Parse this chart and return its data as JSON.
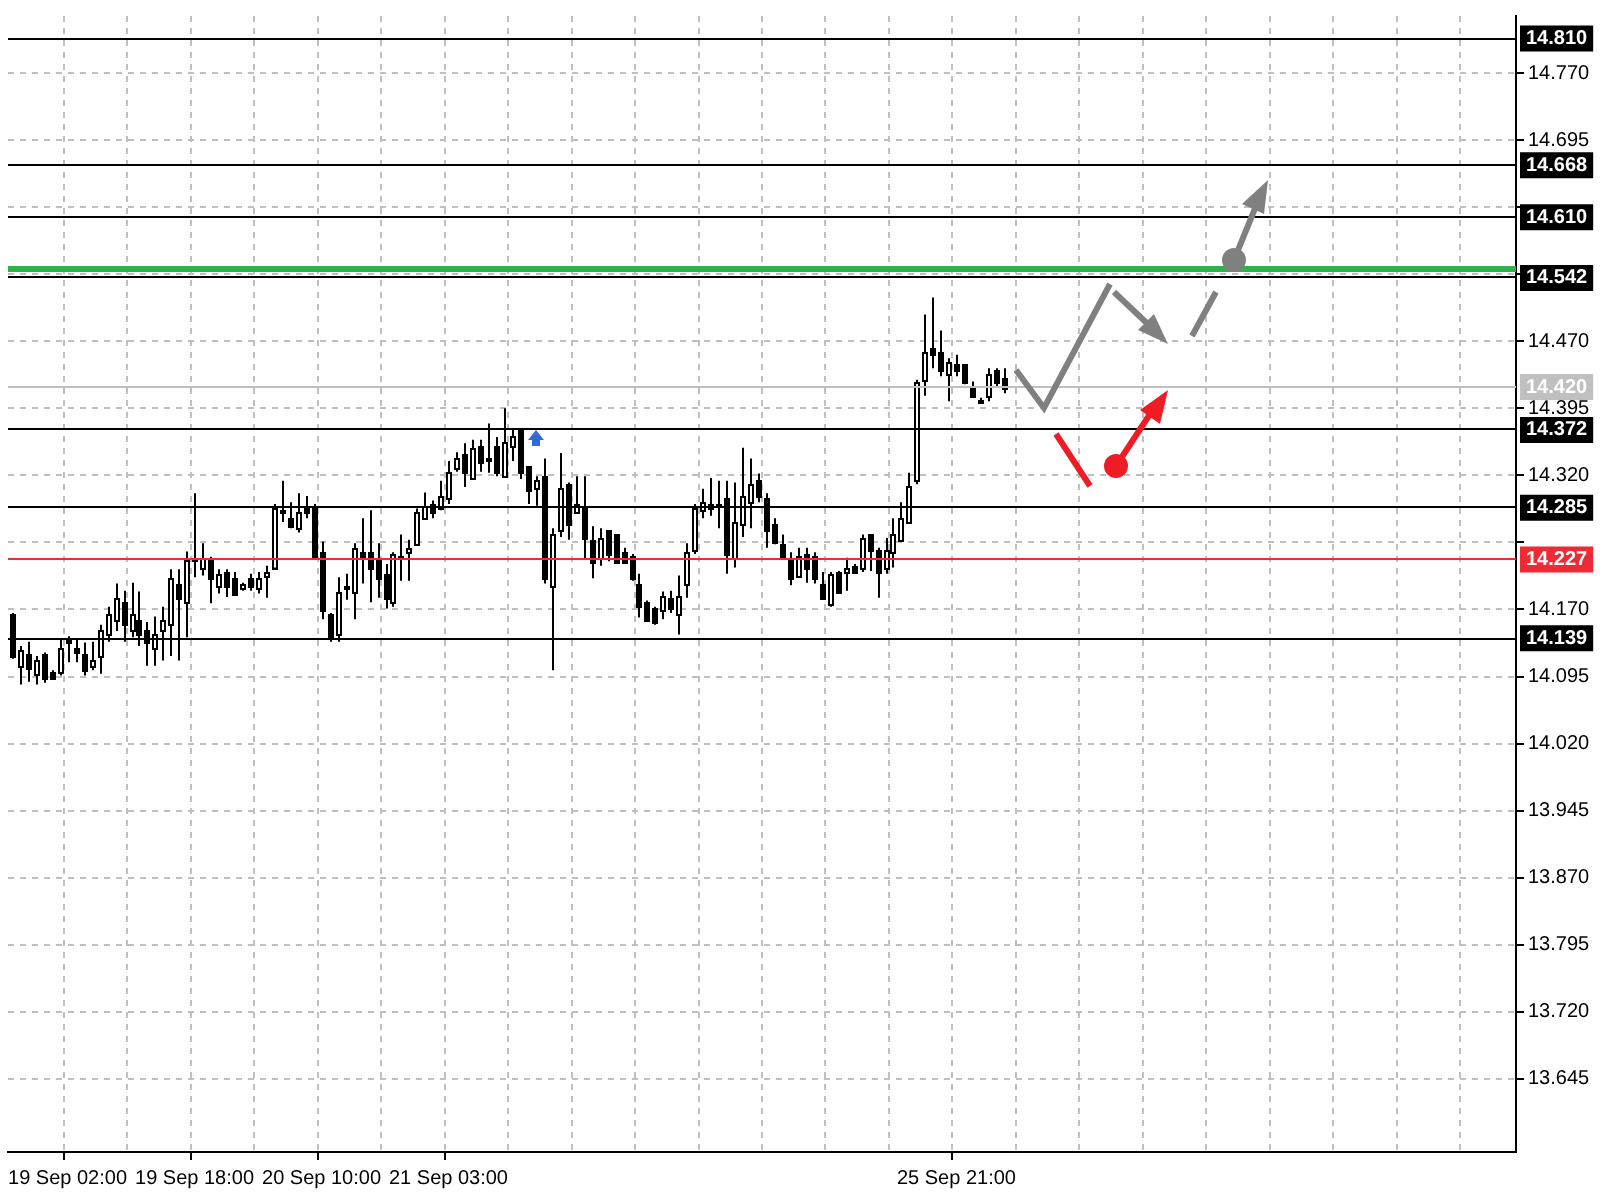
{
  "chart_data": {
    "type": "candlestick",
    "color": "#000000",
    "categories": [
      null,
      null,
      null,
      null,
      null,
      null,
      null,
      "19 Sep 02:00",
      null,
      null,
      null,
      null,
      null,
      null,
      null,
      null,
      null,
      null,
      null,
      null,
      null,
      null,
      null,
      "19 Sep 18:00",
      null,
      null,
      null,
      null,
      null,
      null,
      null,
      null,
      null,
      null,
      null,
      null,
      null,
      null,
      null,
      "20 Sep 10:00",
      null,
      null,
      null,
      null,
      null,
      null,
      null,
      null,
      null,
      null,
      null,
      null,
      null,
      null,
      null,
      "21 Sep 03:00",
      null,
      null,
      null,
      null,
      null,
      null,
      null,
      null,
      null,
      null,
      null,
      null,
      null,
      null,
      null,
      null,
      null,
      null,
      null,
      null,
      null,
      null,
      null,
      null,
      null,
      null,
      null,
      null,
      null,
      null,
      null,
      null,
      null,
      null,
      null,
      null,
      null,
      null,
      null,
      null,
      null,
      null,
      null,
      null,
      null,
      null,
      null,
      null,
      null,
      null,
      null,
      null,
      null,
      null,
      null,
      null,
      null,
      null,
      null,
      null,
      null,
      null,
      null,
      "25 Sep 21:00",
      null,
      null,
      null,
      null,
      null,
      null,
      null,
      null,
      null,
      null,
      null,
      null,
      null,
      null,
      null,
      null,
      null,
      null,
      null,
      null,
      null,
      null,
      null,
      null,
      null,
      null,
      null,
      null,
      null,
      null,
      null,
      null,
      null,
      null,
      null,
      null,
      null,
      null,
      null,
      null,
      null,
      null,
      null,
      null,
      null,
      null,
      null,
      null,
      null,
      null,
      null,
      null,
      null,
      null,
      null,
      null,
      null,
      null,
      null,
      null,
      null,
      null,
      null,
      null,
      null,
      null,
      null,
      null,
      null,
      null
    ],
    "ohlc": [
      [
        14.164,
        14.166,
        14.115,
        14.118
      ],
      [
        14.107,
        14.129,
        14.086,
        14.124
      ],
      [
        14.12,
        14.134,
        14.089,
        14.104
      ],
      [
        14.098,
        14.118,
        14.086,
        14.113
      ],
      [
        14.12,
        14.122,
        14.088,
        14.093
      ],
      [
        14.1,
        14.102,
        14.091,
        14.093
      ],
      [
        14.099,
        14.138,
        14.096,
        14.128
      ],
      [
        14.134,
        14.14,
        14.111,
        14.136
      ],
      [
        14.128,
        14.137,
        14.111,
        14.122
      ],
      [
        14.12,
        14.133,
        14.096,
        14.102
      ],
      [
        14.107,
        14.134,
        14.102,
        14.113
      ],
      [
        14.118,
        14.153,
        14.098,
        14.148
      ],
      [
        14.142,
        14.173,
        14.134,
        14.164
      ],
      [
        14.158,
        14.199,
        14.146,
        14.183
      ],
      [
        14.178,
        14.191,
        14.134,
        14.153
      ],
      [
        14.146,
        14.2,
        14.139,
        14.164
      ],
      [
        14.159,
        14.19,
        14.129,
        14.142
      ],
      [
        14.148,
        14.156,
        14.107,
        14.134
      ],
      [
        14.127,
        14.162,
        14.107,
        14.143
      ],
      [
        14.148,
        14.173,
        14.113,
        14.159
      ],
      [
        14.153,
        14.215,
        14.118,
        14.205
      ],
      [
        14.199,
        14.215,
        14.113,
        14.183
      ],
      [
        14.178,
        14.235,
        14.139,
        14.226
      ],
      [
        14.226,
        14.3,
        14.206,
        14.227
      ],
      [
        14.217,
        14.244,
        14.208,
        14.228
      ],
      [
        14.227,
        14.229,
        14.177,
        14.205
      ],
      [
        14.197,
        14.215,
        14.188,
        14.209
      ],
      [
        14.213,
        14.215,
        14.184,
        14.197
      ],
      [
        14.206,
        14.212,
        14.186,
        14.188
      ],
      [
        14.194,
        14.2,
        14.191,
        14.199
      ],
      [
        14.205,
        14.21,
        14.191,
        14.197
      ],
      [
        14.193,
        14.212,
        14.188,
        14.205
      ],
      [
        14.208,
        14.219,
        14.183,
        14.213
      ],
      [
        14.217,
        14.288,
        14.217,
        14.284
      ],
      [
        14.28,
        14.314,
        14.268,
        14.281
      ],
      [
        14.273,
        14.29,
        14.261,
        14.263
      ],
      [
        14.261,
        14.3,
        14.256,
        14.279
      ],
      [
        14.285,
        14.297,
        14.272,
        14.278
      ],
      [
        14.286,
        14.288,
        14.227,
        14.227
      ],
      [
        14.234,
        14.246,
        14.159,
        14.17
      ],
      [
        14.164,
        14.166,
        14.134,
        14.139
      ],
      [
        14.142,
        14.206,
        14.134,
        14.19
      ],
      [
        14.194,
        14.21,
        14.181,
        14.196
      ],
      [
        14.19,
        14.244,
        14.159,
        14.239
      ],
      [
        14.234,
        14.272,
        14.199,
        14.227
      ],
      [
        14.234,
        14.281,
        14.178,
        14.217
      ],
      [
        14.227,
        14.244,
        14.183,
        14.205
      ],
      [
        14.21,
        14.221,
        14.171,
        14.183
      ],
      [
        14.178,
        14.234,
        14.173,
        14.232
      ],
      [
        14.227,
        14.254,
        14.202,
        14.229
      ],
      [
        14.234,
        14.248,
        14.202,
        14.239
      ],
      [
        14.244,
        14.283,
        14.241,
        14.279
      ],
      [
        14.273,
        14.301,
        14.272,
        14.285
      ],
      [
        14.288,
        14.292,
        14.272,
        14.279
      ],
      [
        14.283,
        14.314,
        14.281,
        14.297
      ],
      [
        14.295,
        14.336,
        14.288,
        14.323
      ],
      [
        14.329,
        14.346,
        14.324,
        14.339
      ],
      [
        14.343,
        14.356,
        14.307,
        14.323
      ],
      [
        14.318,
        14.36,
        14.317,
        14.35
      ],
      [
        14.354,
        14.36,
        14.324,
        14.334
      ],
      [
        14.338,
        14.378,
        14.323,
        14.34
      ],
      [
        14.352,
        14.363,
        14.319,
        14.324
      ],
      [
        14.319,
        14.395,
        14.317,
        14.358
      ],
      [
        14.354,
        14.373,
        14.336,
        14.365
      ],
      [
        14.371,
        14.371,
        14.316,
        14.323
      ],
      [
        14.33,
        14.33,
        14.288,
        14.303
      ],
      [
        14.307,
        14.319,
        14.286,
        14.314
      ],
      [
        14.319,
        14.339,
        14.199,
        14.205
      ],
      [
        14.197,
        14.261,
        14.102,
        14.254
      ],
      [
        14.259,
        14.345,
        14.251,
        14.305
      ],
      [
        14.31,
        14.312,
        14.248,
        14.266
      ],
      [
        14.279,
        14.319,
        14.278,
        14.288
      ],
      [
        14.286,
        14.319,
        14.227,
        14.251
      ],
      [
        14.248,
        14.263,
        14.205,
        14.224
      ],
      [
        14.227,
        14.261,
        14.219,
        14.25
      ],
      [
        14.259,
        14.259,
        14.224,
        14.232
      ],
      [
        14.254,
        14.254,
        14.222,
        14.224
      ],
      [
        14.234,
        14.239,
        14.222,
        14.224
      ],
      [
        14.229,
        14.232,
        14.202,
        14.205
      ],
      [
        14.199,
        14.21,
        14.161,
        14.173
      ],
      [
        14.178,
        14.18,
        14.156,
        14.159
      ],
      [
        14.171,
        14.173,
        14.153,
        14.155
      ],
      [
        14.17,
        14.19,
        14.159,
        14.184
      ],
      [
        14.183,
        14.191,
        14.166,
        14.171
      ],
      [
        14.164,
        14.208,
        14.142,
        14.184
      ],
      [
        14.199,
        14.244,
        14.183,
        14.234
      ],
      [
        14.237,
        14.288,
        14.232,
        14.283
      ],
      [
        14.281,
        14.305,
        14.272,
        14.29
      ],
      [
        14.288,
        14.317,
        14.275,
        14.283
      ],
      [
        14.285,
        14.314,
        14.261,
        14.288
      ],
      [
        14.295,
        14.314,
        14.21,
        14.232
      ],
      [
        14.228,
        14.312,
        14.217,
        14.268
      ],
      [
        14.265,
        14.351,
        14.251,
        14.297
      ],
      [
        14.29,
        14.339,
        14.261,
        14.31
      ],
      [
        14.314,
        14.322,
        14.29,
        14.297
      ],
      [
        14.295,
        14.3,
        14.239,
        14.259
      ],
      [
        14.265,
        14.272,
        14.243,
        14.246
      ],
      [
        14.244,
        14.254,
        14.227,
        14.228
      ],
      [
        14.228,
        14.234,
        14.197,
        14.205
      ],
      [
        14.208,
        14.239,
        14.206,
        14.229
      ],
      [
        14.232,
        14.239,
        14.2,
        14.217
      ],
      [
        14.229,
        14.234,
        14.199,
        14.205
      ],
      [
        14.199,
        14.212,
        14.181,
        14.183
      ],
      [
        14.177,
        14.212,
        14.173,
        14.21
      ],
      [
        14.213,
        14.213,
        14.188,
        14.19
      ],
      [
        14.212,
        14.228,
        14.191,
        14.217
      ],
      [
        14.219,
        14.221,
        14.21,
        14.212
      ],
      [
        14.217,
        14.254,
        14.212,
        14.25
      ],
      [
        14.254,
        14.254,
        14.213,
        14.237
      ],
      [
        14.237,
        14.239,
        14.183,
        14.212
      ],
      [
        14.217,
        14.25,
        14.21,
        14.237
      ],
      [
        14.234,
        14.272,
        14.217,
        14.254
      ],
      [
        14.248,
        14.29,
        14.246,
        14.273
      ],
      [
        14.268,
        14.323,
        14.266,
        14.308
      ],
      [
        14.314,
        14.427,
        14.31,
        14.424
      ],
      [
        14.427,
        14.5,
        14.409,
        14.458
      ],
      [
        14.463,
        14.519,
        14.44,
        14.455
      ],
      [
        14.458,
        14.482,
        14.431,
        14.438
      ],
      [
        14.433,
        14.451,
        14.403,
        14.447
      ],
      [
        14.444,
        14.455,
        14.431,
        14.438
      ],
      [
        14.444,
        14.444,
        14.422,
        14.424
      ],
      [
        14.419,
        14.425,
        14.407,
        14.409
      ],
      [
        14.405,
        14.407,
        14.403,
        14.404
      ],
      [
        14.409,
        14.44,
        14.403,
        14.433
      ],
      [
        14.438,
        14.44,
        14.419,
        14.424
      ],
      [
        14.429,
        14.44,
        14.412,
        14.418
      ],
      null,
      null,
      null,
      null,
      null,
      null,
      null,
      null,
      null,
      null,
      null,
      null,
      null,
      null,
      null,
      null,
      null,
      null,
      null,
      null,
      null,
      null,
      null,
      null,
      null,
      null,
      null,
      null,
      null,
      null,
      null,
      null,
      null,
      null,
      null,
      null,
      null,
      null,
      null,
      null,
      null,
      null,
      null,
      null,
      null,
      null,
      null,
      null,
      null,
      null,
      null,
      null,
      null,
      null,
      null,
      null,
      null,
      null,
      null,
      null,
      null,
      null,
      null,
      null
    ],
    "ylim": [
      13.563,
      14.834
    ],
    "yticks": [
      13.645,
      {
        "value": 13.72,
        "label": "13.720"
      },
      13.795,
      {
        "value": 13.87,
        "label": "13.870"
      },
      13.945,
      {
        "value": 14.02,
        "label": "14.020"
      },
      14.095,
      {
        "value": 14.17,
        "label": "14.170"
      },
      {
        "value": 14.245,
        "label": null
      },
      {
        "value": 14.32,
        "label": "14.320"
      },
      14.395,
      {
        "value": 14.47,
        "label": "14.470"
      },
      {
        "value": 14.545,
        "label": null
      },
      {
        "value": 14.62,
        "label": null
      },
      14.695,
      {
        "value": 14.77,
        "label": "14.770"
      }
    ],
    "grid": true,
    "ref_lines": [
      {
        "axis": "y",
        "value": 14.81,
        "label": "14.810",
        "color": "#000000"
      },
      {
        "axis": "y",
        "value": 14.668,
        "label": "14.668",
        "color": "#000000"
      },
      {
        "axis": "y",
        "value": 14.61,
        "label": "14.610",
        "color": "#000000"
      },
      {
        "axis": "y",
        "value": 14.542,
        "label": "14.542",
        "color": "#000000"
      },
      {
        "axis": "y",
        "value": 14.552,
        "color": "#2db34a"
      },
      {
        "axis": "y",
        "value": 14.42,
        "label": "14.420",
        "color": "#c0c0c0"
      },
      {
        "axis": "y",
        "value": 14.372,
        "label": "14.372",
        "color": "#000000"
      },
      {
        "axis": "y",
        "value": 14.285,
        "label": "14.285",
        "color": "#000000"
      },
      {
        "axis": "y",
        "value": 14.227,
        "label": "14.227",
        "color": "#ee2a35"
      },
      {
        "axis": "y",
        "value": 14.139,
        "label": "14.139",
        "color": "#000000"
      }
    ]
  }
}
